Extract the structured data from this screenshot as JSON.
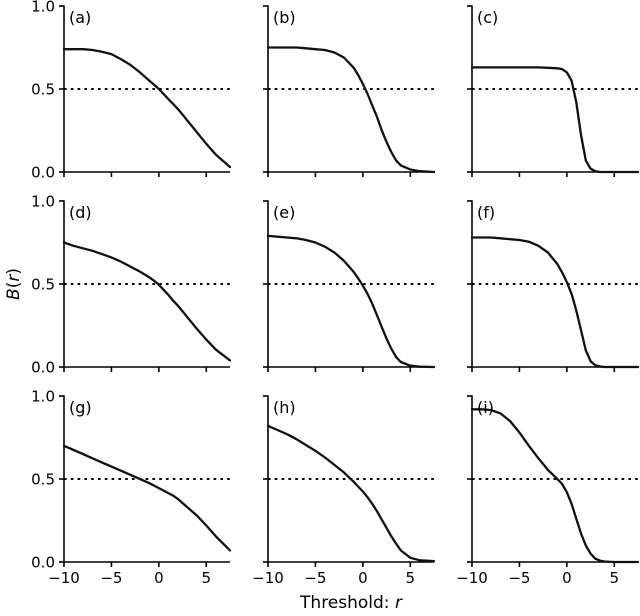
{
  "figure": {
    "ylabel_b": "B",
    "ylabel_open": "(",
    "ylabel_r": "r",
    "ylabel_close": ")",
    "xlabel_prefix": "Threshold: ",
    "xlabel_var": "r"
  },
  "chart_data": {
    "type": "line",
    "grid": [
      3,
      3
    ],
    "title": "",
    "xlabel": "Threshold: r",
    "ylabel": "B(r)",
    "xlim": [
      -10,
      7.5
    ],
    "ylim": [
      0,
      1.0
    ],
    "xticks": [
      -10,
      -5,
      0,
      5
    ],
    "xtick_labels": [
      "−10",
      "−5",
      "0",
      "5"
    ],
    "yticks": [
      0,
      0.5,
      1.0
    ],
    "ytick_labels": [
      "0.0",
      "0.5",
      "1.0"
    ],
    "hline_y": 0.5,
    "line_color": "#111111",
    "x": [
      -10,
      -9,
      -8,
      -7,
      -6,
      -5,
      -4,
      -3,
      -2,
      -1,
      -0.5,
      0,
      0.5,
      1,
      1.5,
      2,
      2.5,
      3,
      3.5,
      4,
      5,
      6,
      7.5
    ],
    "panels": [
      {
        "label": "(a)",
        "y": [
          0.74,
          0.74,
          0.74,
          0.735,
          0.725,
          0.71,
          0.68,
          0.645,
          0.6,
          0.55,
          0.525,
          0.5,
          0.47,
          0.44,
          0.41,
          0.38,
          0.345,
          0.31,
          0.275,
          0.24,
          0.17,
          0.105,
          0.03
        ]
      },
      {
        "label": "(b)",
        "y": [
          0.75,
          0.75,
          0.75,
          0.75,
          0.745,
          0.74,
          0.735,
          0.72,
          0.69,
          0.63,
          0.585,
          0.53,
          0.47,
          0.4,
          0.33,
          0.25,
          0.18,
          0.12,
          0.07,
          0.04,
          0.015,
          0.005,
          0.0
        ]
      },
      {
        "label": "(c)",
        "y": [
          0.63,
          0.63,
          0.63,
          0.63,
          0.63,
          0.63,
          0.63,
          0.63,
          0.628,
          0.625,
          0.62,
          0.6,
          0.55,
          0.42,
          0.22,
          0.07,
          0.02,
          0.005,
          0.0,
          0.0,
          0.0,
          0.0,
          0.0
        ]
      },
      {
        "label": "(d)",
        "y": [
          0.75,
          0.73,
          0.715,
          0.7,
          0.68,
          0.66,
          0.635,
          0.605,
          0.575,
          0.54,
          0.52,
          0.495,
          0.465,
          0.435,
          0.4,
          0.37,
          0.335,
          0.3,
          0.265,
          0.23,
          0.165,
          0.105,
          0.04
        ]
      },
      {
        "label": "(e)",
        "y": [
          0.79,
          0.785,
          0.78,
          0.775,
          0.765,
          0.75,
          0.725,
          0.69,
          0.64,
          0.575,
          0.535,
          0.49,
          0.44,
          0.38,
          0.31,
          0.24,
          0.17,
          0.11,
          0.06,
          0.03,
          0.008,
          0.002,
          0.0
        ]
      },
      {
        "label": "(f)",
        "y": [
          0.78,
          0.78,
          0.78,
          0.775,
          0.77,
          0.765,
          0.755,
          0.73,
          0.69,
          0.62,
          0.57,
          0.51,
          0.44,
          0.34,
          0.22,
          0.1,
          0.035,
          0.01,
          0.003,
          0.0,
          0.0,
          0.0,
          0.0
        ]
      },
      {
        "label": "(g)",
        "y": [
          0.7,
          0.675,
          0.65,
          0.625,
          0.6,
          0.575,
          0.55,
          0.525,
          0.5,
          0.475,
          0.46,
          0.445,
          0.43,
          0.415,
          0.4,
          0.38,
          0.355,
          0.33,
          0.305,
          0.28,
          0.22,
          0.155,
          0.07
        ]
      },
      {
        "label": "(h)",
        "y": [
          0.82,
          0.795,
          0.77,
          0.74,
          0.705,
          0.67,
          0.63,
          0.585,
          0.54,
          0.485,
          0.455,
          0.425,
          0.39,
          0.35,
          0.305,
          0.255,
          0.205,
          0.155,
          0.11,
          0.07,
          0.025,
          0.01,
          0.005
        ]
      },
      {
        "label": "(i)",
        "y": [
          0.92,
          0.92,
          0.915,
          0.895,
          0.85,
          0.78,
          0.7,
          0.625,
          0.555,
          0.5,
          0.47,
          0.42,
          0.35,
          0.26,
          0.17,
          0.1,
          0.05,
          0.02,
          0.008,
          0.003,
          0.0,
          0.0,
          0.0
        ]
      }
    ]
  }
}
